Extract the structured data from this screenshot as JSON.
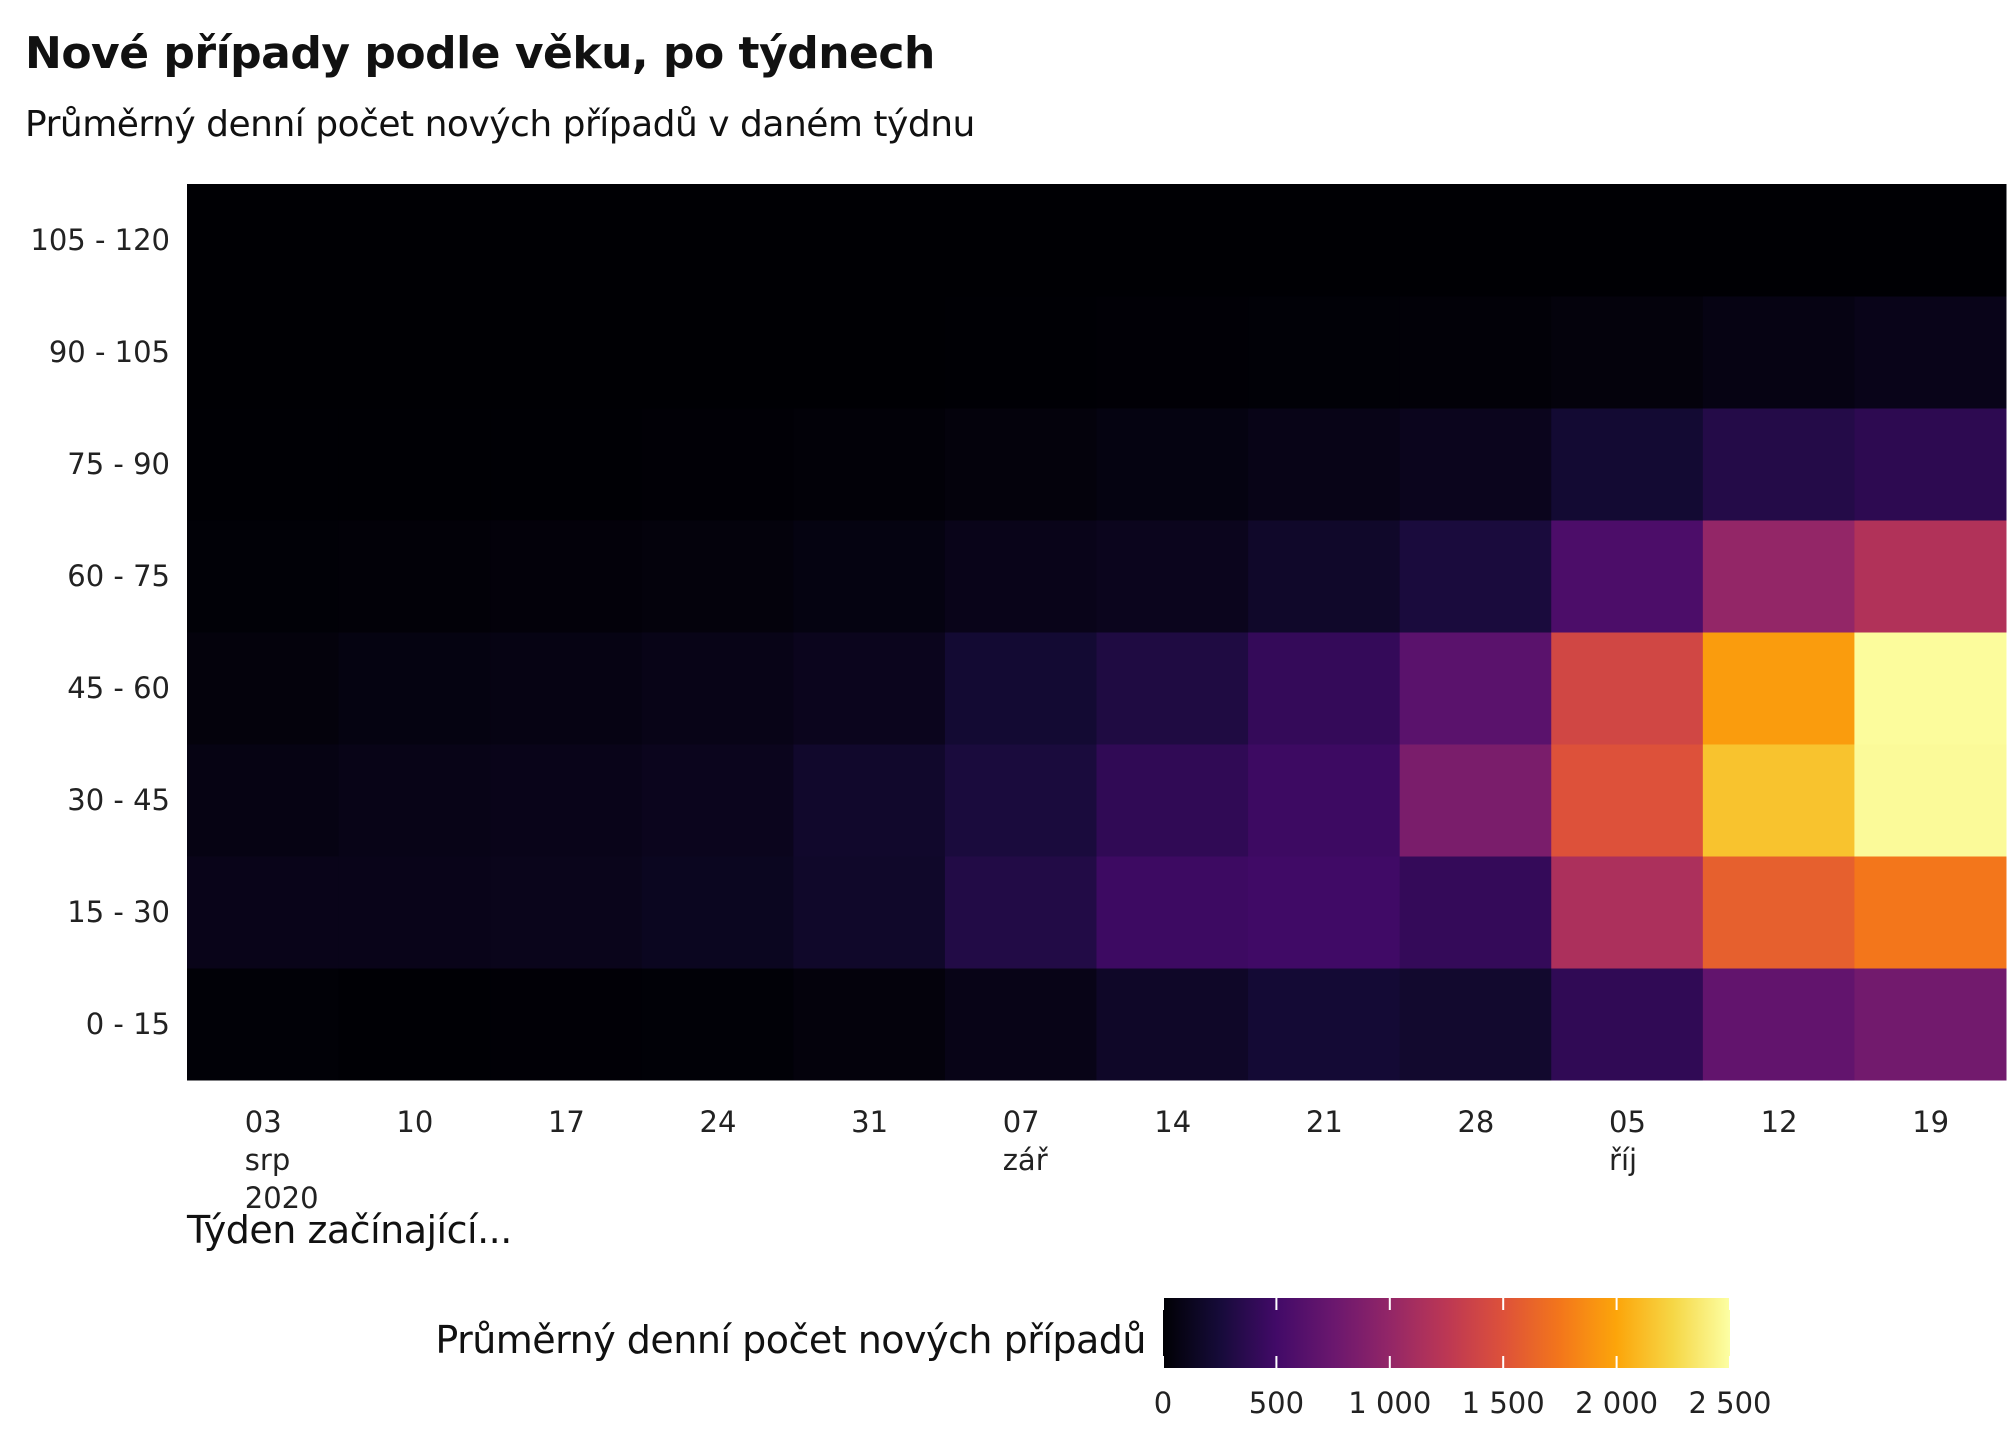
{
  "title": "Nové případy podle věku, po týdnech",
  "subtitle": "Průměrný denní počet nových případů v daném týdnu",
  "chart_data": {
    "type": "heatmap",
    "title": "Nové případy podle věku, po týdnech",
    "subtitle": "Průměrný denní počet nových případů v daném týdnu",
    "xlabel": "Týden začínající...",
    "ylabel": "",
    "x_tick_labels": [
      [
        "03",
        "srp",
        "2020"
      ],
      [
        "10"
      ],
      [
        "17"
      ],
      [
        "24"
      ],
      [
        "31"
      ],
      [
        "07",
        "zář"
      ],
      [
        "14"
      ],
      [
        "21"
      ],
      [
        "28"
      ],
      [
        "05",
        "říj"
      ],
      [
        "12"
      ],
      [
        "19"
      ]
    ],
    "y_categories": [
      "0 - 15",
      "15 - 30",
      "30 - 45",
      "45 - 60",
      "60 - 75",
      "75 - 90",
      "90 - 105",
      "105 - 120"
    ],
    "values": [
      [
        15,
        5,
        10,
        15,
        40,
        90,
        170,
        230,
        200,
        400,
        700,
        800
      ],
      [
        100,
        100,
        110,
        130,
        180,
        320,
        470,
        490,
        420,
        1150,
        1600,
        1750
      ],
      [
        70,
        90,
        100,
        120,
        190,
        270,
        400,
        470,
        850,
        1500,
        2150,
        2470
      ],
      [
        40,
        60,
        70,
        90,
        120,
        220,
        300,
        420,
        650,
        1400,
        1950,
        2480
      ],
      [
        15,
        20,
        30,
        40,
        60,
        100,
        120,
        180,
        270,
        560,
        1000,
        1180
      ],
      [
        5,
        5,
        5,
        10,
        20,
        40,
        60,
        90,
        120,
        220,
        330,
        380
      ],
      [
        2,
        2,
        2,
        2,
        2,
        5,
        10,
        15,
        20,
        40,
        70,
        100
      ],
      [
        0,
        0,
        0,
        0,
        0,
        0,
        0,
        0,
        0,
        0,
        0,
        0
      ]
    ],
    "colorscale": "inferno",
    "color_range": [
      0,
      2500
    ],
    "legend": {
      "title": "Průměrný denní počet nových případů",
      "ticks": [
        0,
        500,
        1000,
        1500,
        2000,
        2500
      ],
      "tick_labels": [
        "0",
        "500",
        "1 000",
        "1 500",
        "2 000",
        "2 500"
      ],
      "placement": "bottom"
    }
  }
}
